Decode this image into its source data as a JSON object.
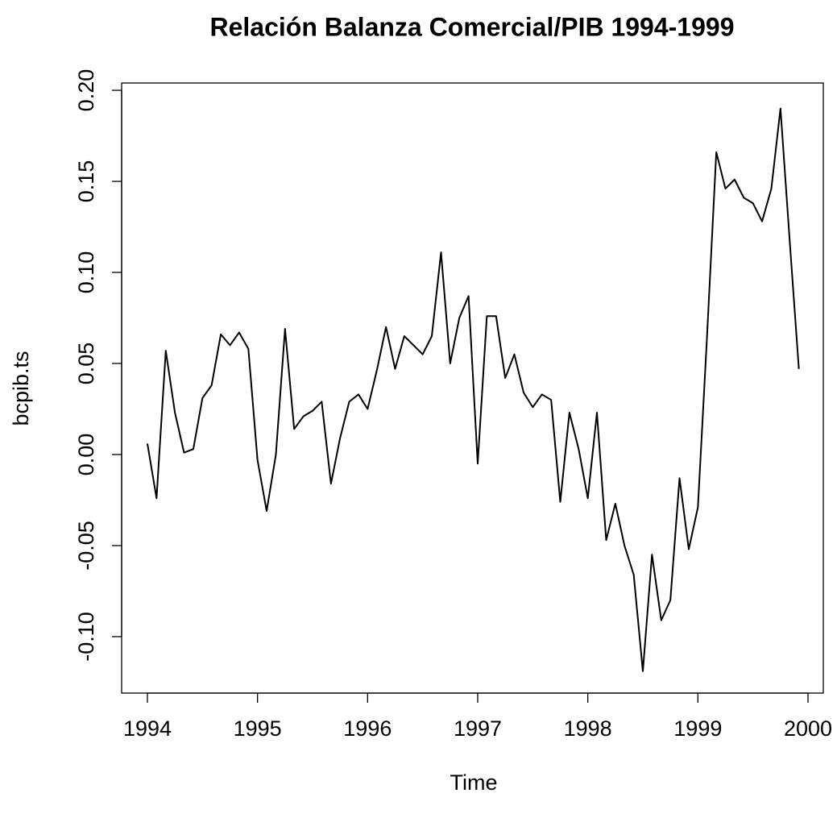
{
  "chart_data": {
    "type": "line",
    "title": "Relación Balanza Comercial/PIB 1994-1999",
    "x_label": "Time",
    "y_label": "bcpib.ts",
    "x": [
      1994.0,
      1994.083,
      1994.167,
      1994.25,
      1994.333,
      1994.417,
      1994.5,
      1994.583,
      1994.667,
      1994.75,
      1994.833,
      1994.917,
      1995.0,
      1995.083,
      1995.167,
      1995.25,
      1995.333,
      1995.417,
      1995.5,
      1995.583,
      1995.667,
      1995.75,
      1995.833,
      1995.917,
      1996.0,
      1996.083,
      1996.167,
      1996.25,
      1996.333,
      1996.417,
      1996.5,
      1996.583,
      1996.667,
      1996.75,
      1996.833,
      1996.917,
      1997.0,
      1997.083,
      1997.167,
      1997.25,
      1997.333,
      1997.417,
      1997.5,
      1997.583,
      1997.667,
      1997.75,
      1997.833,
      1997.917,
      1998.0,
      1998.083,
      1998.167,
      1998.25,
      1998.333,
      1998.417,
      1998.5,
      1998.583,
      1998.667,
      1998.75,
      1998.833,
      1998.917,
      1999.0,
      1999.083,
      1999.167,
      1999.25,
      1999.333,
      1999.417,
      1999.5,
      1999.583,
      1999.667,
      1999.75,
      1999.833,
      1999.917
    ],
    "series": [
      {
        "name": "bcpib.ts",
        "color": "#000000",
        "values": [
          0.006,
          -0.024,
          0.057,
          0.023,
          0.001,
          0.003,
          0.031,
          0.038,
          0.066,
          0.06,
          0.067,
          0.058,
          -0.003,
          -0.031,
          0.0,
          0.069,
          0.014,
          0.021,
          0.024,
          0.029,
          -0.016,
          0.009,
          0.029,
          0.033,
          0.025,
          0.046,
          0.07,
          0.047,
          0.065,
          0.06,
          0.055,
          0.065,
          0.111,
          0.05,
          0.075,
          0.087,
          -0.005,
          0.076,
          0.076,
          0.042,
          0.055,
          0.034,
          0.026,
          0.033,
          0.03,
          -0.026,
          0.023,
          0.003,
          -0.024,
          0.023,
          -0.047,
          -0.027,
          -0.05,
          -0.066,
          -0.119,
          -0.055,
          -0.091,
          -0.08,
          -0.013,
          -0.052,
          -0.029,
          0.065,
          0.166,
          0.146,
          0.151,
          0.141,
          0.138,
          0.128,
          0.146,
          0.19,
          0.118,
          0.047
        ]
      }
    ],
    "xlim": [
      1993.766,
      2000.139
    ],
    "xticks": [
      1994,
      1995,
      1996,
      1997,
      1998,
      1999,
      2000
    ],
    "ylim": [
      -0.131,
      0.204
    ],
    "yticks": [
      {
        "value": -0.1,
        "label": "-0.10"
      },
      {
        "value": -0.05,
        "label": "-0.05"
      },
      {
        "value": 0,
        "label": "0.00"
      },
      {
        "value": 0.05,
        "label": "0.05"
      },
      {
        "value": 0.1,
        "label": "0.10"
      },
      {
        "value": 0.15,
        "label": "0.15"
      },
      {
        "value": 0.2,
        "label": "0.20"
      }
    ],
    "grid": false
  }
}
